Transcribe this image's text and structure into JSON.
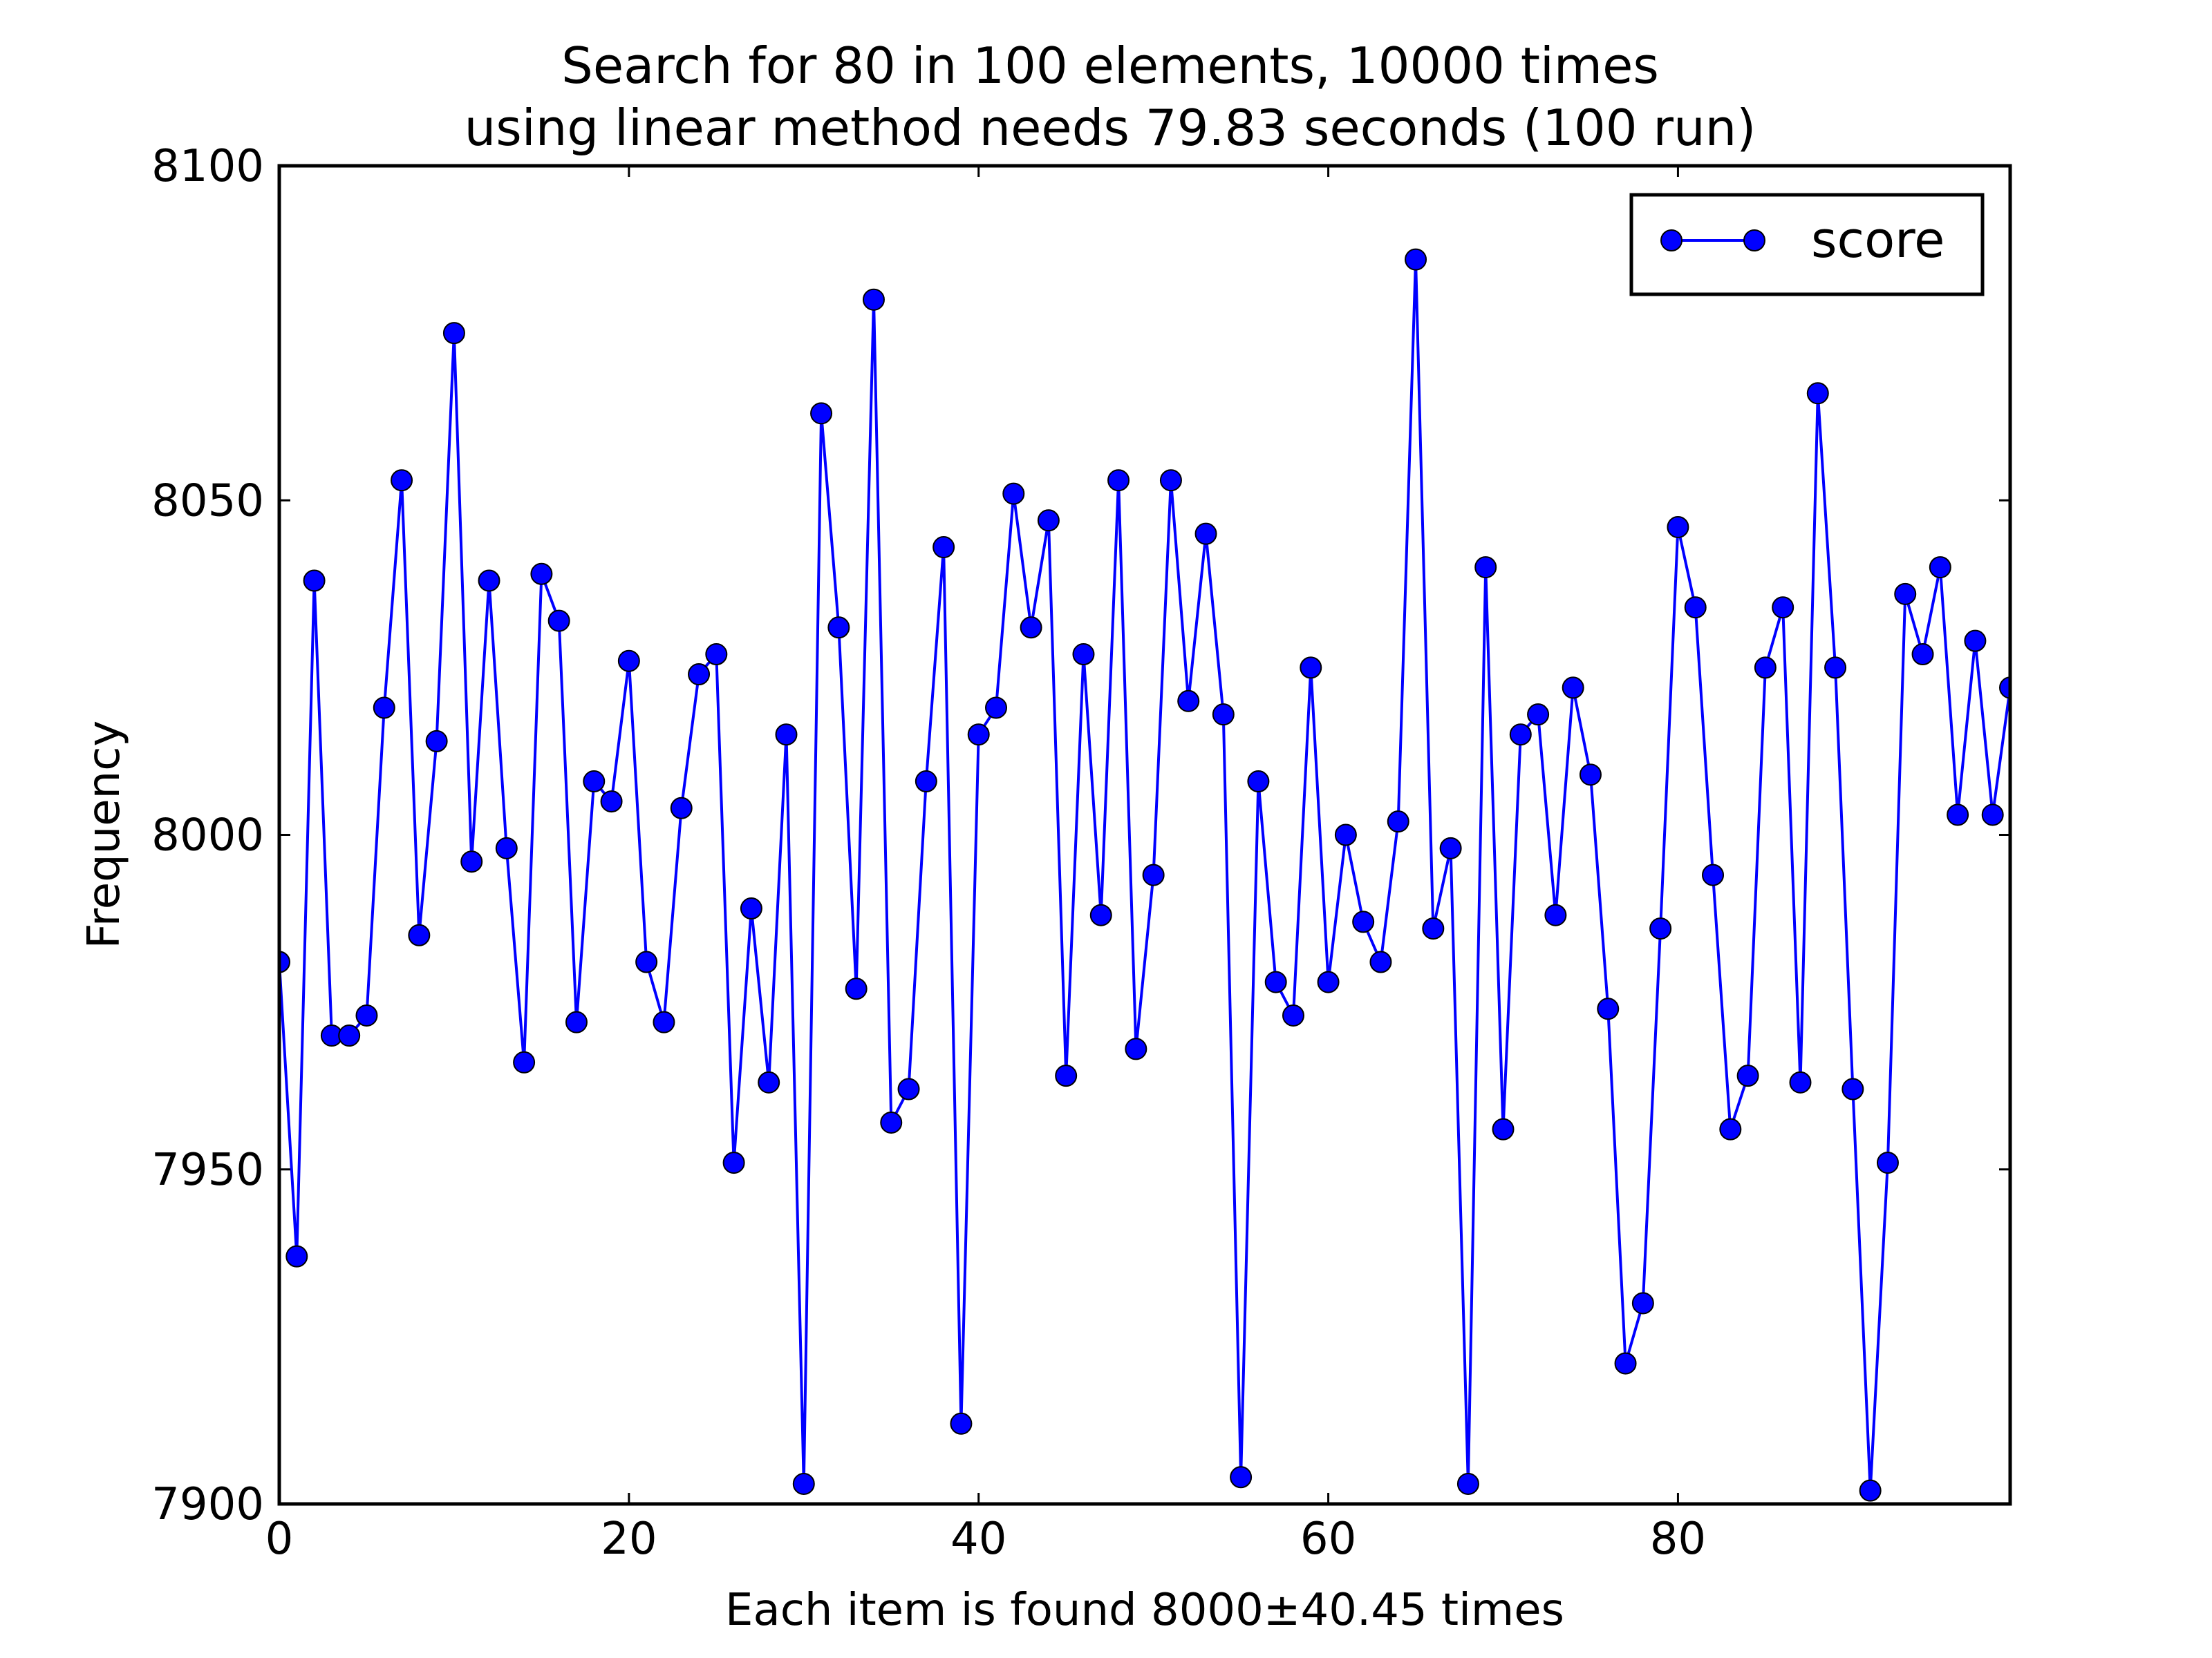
{
  "chart_data": {
    "type": "line",
    "title_lines": [
      "Search for 80 in 100 elements, 10000 times",
      "using linear method needs 79.83 seconds (100 run)"
    ],
    "xlabel": "Each item is found 8000±40.45 times",
    "ylabel": "Frequency",
    "xlim": [
      0,
      99
    ],
    "ylim": [
      7900,
      8100
    ],
    "xticks": [
      0,
      20,
      40,
      60,
      80
    ],
    "xtick_labels": [
      "0",
      "20",
      "40",
      "60",
      "80"
    ],
    "yticks": [
      7900,
      7950,
      8000,
      8050,
      8100
    ],
    "ytick_labels": [
      "7900",
      "7950",
      "8000",
      "8050",
      "8100"
    ],
    "grid": false,
    "legend": {
      "position": "top-right",
      "entries": [
        "score"
      ]
    },
    "series": [
      {
        "name": "score",
        "color": "#0000ff",
        "marker": "circle",
        "x": [
          0,
          1,
          2,
          3,
          4,
          5,
          6,
          7,
          8,
          9,
          10,
          11,
          12,
          13,
          14,
          15,
          16,
          17,
          18,
          19,
          20,
          21,
          22,
          23,
          24,
          25,
          26,
          27,
          28,
          29,
          30,
          31,
          32,
          33,
          34,
          35,
          36,
          37,
          38,
          39,
          40,
          41,
          42,
          43,
          44,
          45,
          46,
          47,
          48,
          49,
          50,
          51,
          52,
          53,
          54,
          55,
          56,
          57,
          58,
          59,
          60,
          61,
          62,
          63,
          64,
          65,
          66,
          67,
          68,
          69,
          70,
          71,
          72,
          73,
          74,
          75,
          76,
          77,
          78,
          79,
          80,
          81,
          82,
          83,
          84,
          85,
          86,
          87,
          88,
          89,
          90,
          91,
          92,
          93,
          94,
          95,
          96,
          97,
          98,
          99
        ],
        "values": [
          7981,
          7937,
          8038,
          7970,
          7970,
          7973,
          8019,
          8053,
          7985,
          8014,
          8075,
          7996,
          8038,
          7998,
          7966,
          8039,
          8032,
          7972,
          8008,
          8005,
          8026,
          7981,
          7972,
          8004,
          8024,
          8027,
          7951,
          7989,
          7963,
          8015,
          7903,
          8063,
          8031,
          7977,
          8080,
          7957,
          7962,
          8008,
          8043,
          7912,
          8015,
          8019,
          8051,
          8031,
          8047,
          7964,
          8027,
          7988,
          8053,
          7968,
          7994,
          8053,
          8020,
          8045,
          8018,
          7904,
          8008,
          7978,
          7973,
          8025,
          7978,
          8000,
          7987,
          7981,
          8002,
          8086,
          7986,
          7998,
          7903,
          8040,
          7956,
          8015,
          8018,
          7988,
          8022,
          8009,
          7974,
          7921,
          7930,
          7986,
          8046,
          8034,
          7994,
          7956,
          7964,
          8025,
          8034,
          7963,
          8066,
          8025,
          7962,
          7902,
          7951,
          8036,
          8027,
          8040,
          8003,
          8029,
          8003,
          8022
        ]
      }
    ]
  }
}
